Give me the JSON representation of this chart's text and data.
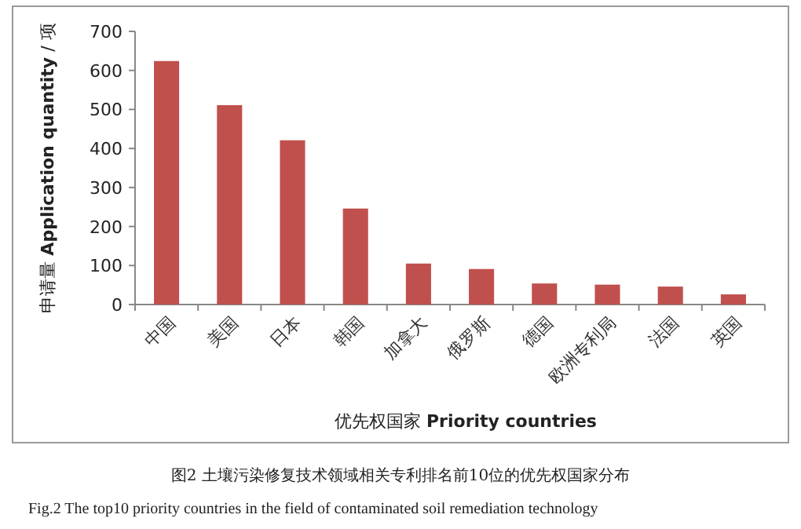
{
  "chart_data": {
    "type": "bar",
    "xlabel": "优先权国家 **Priority countries**",
    "ylabel": "申请量 **Application quantity** / 项",
    "categories": [
      "中国",
      "美国",
      "日本",
      "韩国",
      "加拿大",
      "俄罗斯",
      "德国",
      "欧洲专利局",
      "法国",
      "英国"
    ],
    "values": [
      624,
      511,
      421,
      246,
      105,
      91,
      54,
      51,
      46,
      26
    ],
    "color": "#c0504d",
    "ylim": [
      0,
      700
    ],
    "yticks": [
      0,
      100,
      200,
      300,
      400,
      500,
      600,
      700
    ],
    "grid": false,
    "annotations": [
      "图2  土壤污染修复技术领域相关专利排名前10位的优先权国家分布",
      "Fig.2 The top10 priority countries in the field of contaminated soil remediation technology"
    ]
  }
}
